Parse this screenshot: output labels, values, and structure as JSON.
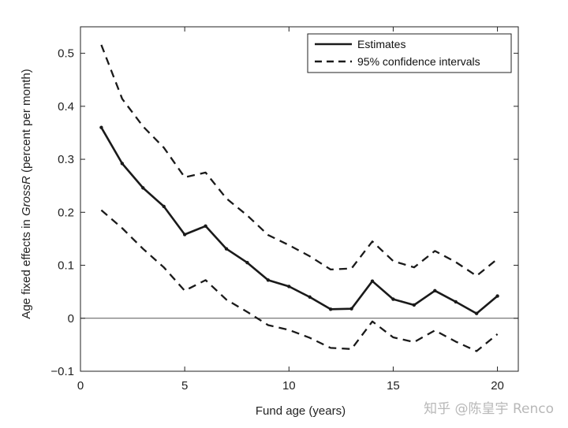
{
  "chart_data": {
    "type": "line",
    "title": "",
    "xlabel": "Fund age (years)",
    "ylabel_prefix": "Age fixed effects in ",
    "ylabel_italic": "GrossR",
    "ylabel_suffix": " (percent per month)",
    "xlim": [
      0,
      21
    ],
    "ylim": [
      -0.1,
      0.55
    ],
    "xticks": [
      0,
      5,
      10,
      15,
      20
    ],
    "yticks": [
      -0.1,
      0,
      0.1,
      0.2,
      0.3,
      0.4,
      0.5
    ],
    "ytick_labels": [
      "−0.1",
      "0",
      "0.1",
      "0.2",
      "0.3",
      "0.4",
      "0.5"
    ],
    "grid": false,
    "legend_position": "top-right",
    "x": [
      1,
      2,
      3,
      4,
      5,
      6,
      7,
      8,
      9,
      10,
      11,
      12,
      13,
      14,
      15,
      16,
      17,
      18,
      19,
      20
    ],
    "series": [
      {
        "name": "Estimates",
        "style": "solid",
        "values": [
          0.36,
          0.292,
          0.246,
          0.211,
          0.158,
          0.174,
          0.131,
          0.105,
          0.072,
          0.06,
          0.04,
          0.017,
          0.018,
          0.07,
          0.036,
          0.025,
          0.052,
          0.031,
          0.009,
          0.042
        ]
      },
      {
        "name": "95% confidence intervals",
        "style": "dashed",
        "role": "upper",
        "values": [
          0.516,
          0.414,
          0.362,
          0.322,
          0.266,
          0.275,
          0.226,
          0.194,
          0.157,
          0.138,
          0.117,
          0.092,
          0.094,
          0.145,
          0.108,
          0.096,
          0.127,
          0.106,
          0.08,
          0.112
        ]
      },
      {
        "name": "",
        "style": "dashed",
        "role": "lower",
        "values": [
          0.204,
          0.17,
          0.131,
          0.096,
          0.052,
          0.072,
          0.035,
          0.012,
          -0.013,
          -0.022,
          -0.037,
          -0.056,
          -0.058,
          -0.006,
          -0.036,
          -0.045,
          -0.023,
          -0.044,
          -0.062,
          -0.03
        ]
      }
    ],
    "zero_line": true,
    "colors": {
      "line": "#1a1a1a",
      "axes": "#222222",
      "zero": "#555555"
    }
  },
  "watermark": "知乎 @陈皇宇 Renco"
}
